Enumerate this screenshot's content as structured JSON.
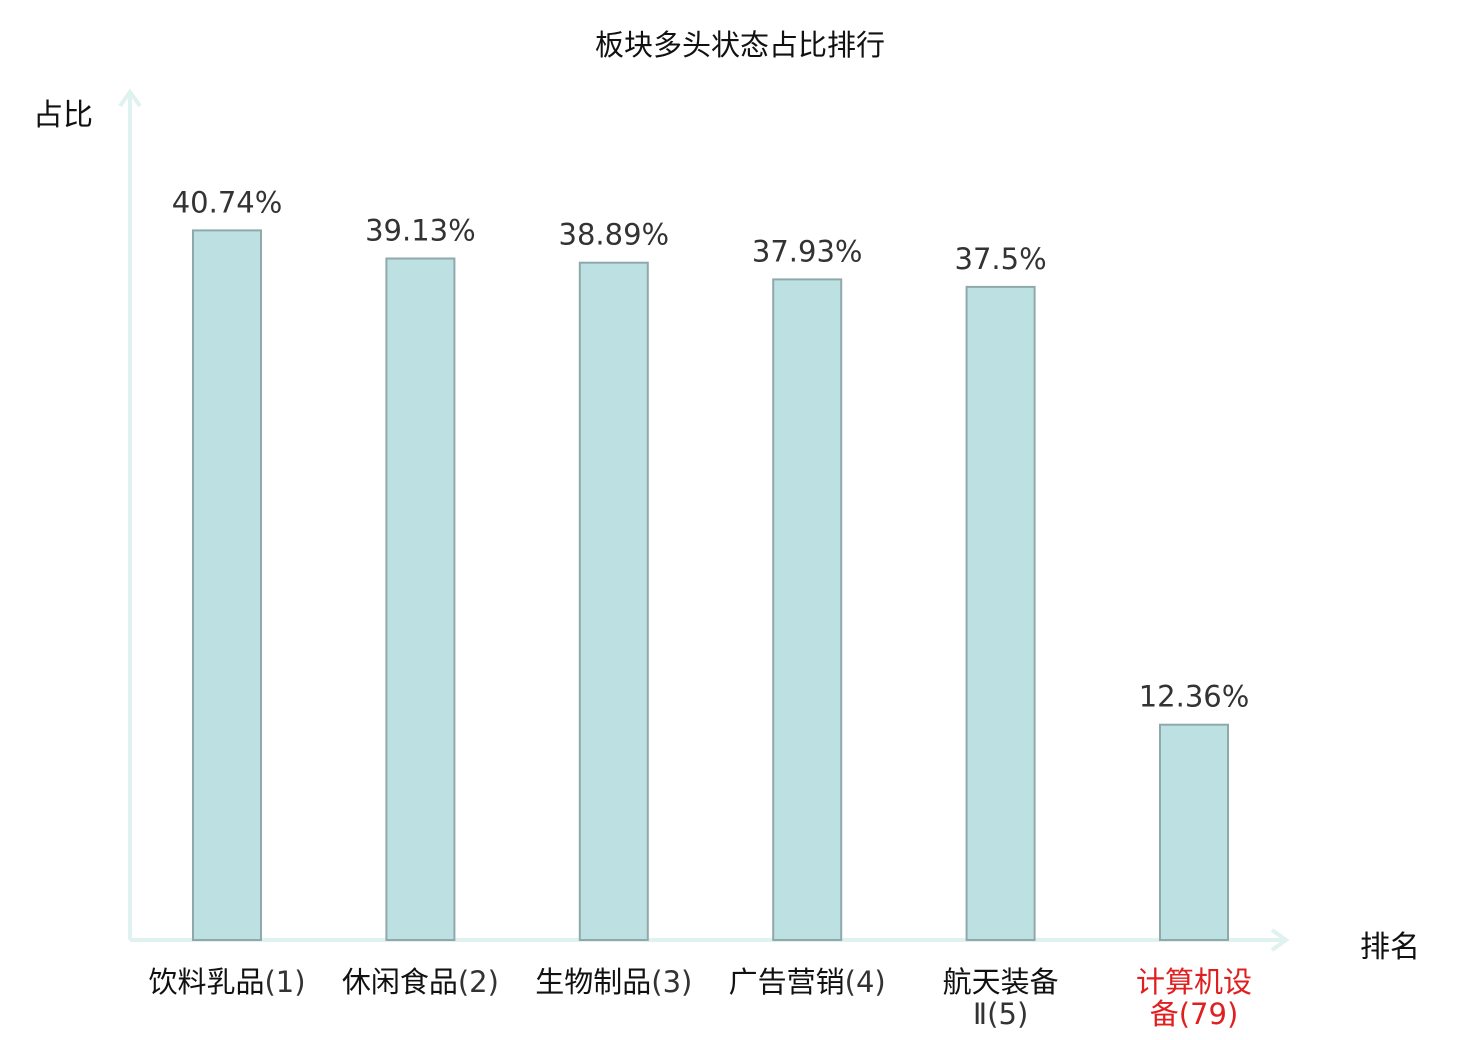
{
  "chart_data": {
    "type": "bar",
    "title": "板块多头状态占比排行",
    "ylabel": "占比",
    "xlabel": "排名",
    "ylim": [
      0,
      48
    ],
    "grid": false,
    "categories": [
      {
        "name": "饮料乳品",
        "rank": "(1)",
        "highlight": false
      },
      {
        "name": "休闲食品",
        "rank": "(2)",
        "highlight": false
      },
      {
        "name": "生物制品",
        "rank": "(3)",
        "highlight": false
      },
      {
        "name": "广告营销",
        "rank": "(4)",
        "highlight": false
      },
      {
        "name": "航天装备",
        "rank": "Ⅱ(5)",
        "highlight": false,
        "wrap": true
      },
      {
        "name": "计算机设",
        "rank": "备(79)",
        "highlight": true,
        "wrap": true
      }
    ],
    "values": [
      40.74,
      39.13,
      38.89,
      37.93,
      37.5,
      12.36
    ],
    "value_labels": [
      "40.74%",
      "39.13%",
      "38.89%",
      "37.93%",
      "37.5%",
      "12.36%"
    ],
    "colors": {
      "bar_fill": "#bde0e3",
      "bar_edge": "#8fa9ab",
      "axis": "#dff2f0",
      "highlight_text": "#e02020"
    }
  }
}
